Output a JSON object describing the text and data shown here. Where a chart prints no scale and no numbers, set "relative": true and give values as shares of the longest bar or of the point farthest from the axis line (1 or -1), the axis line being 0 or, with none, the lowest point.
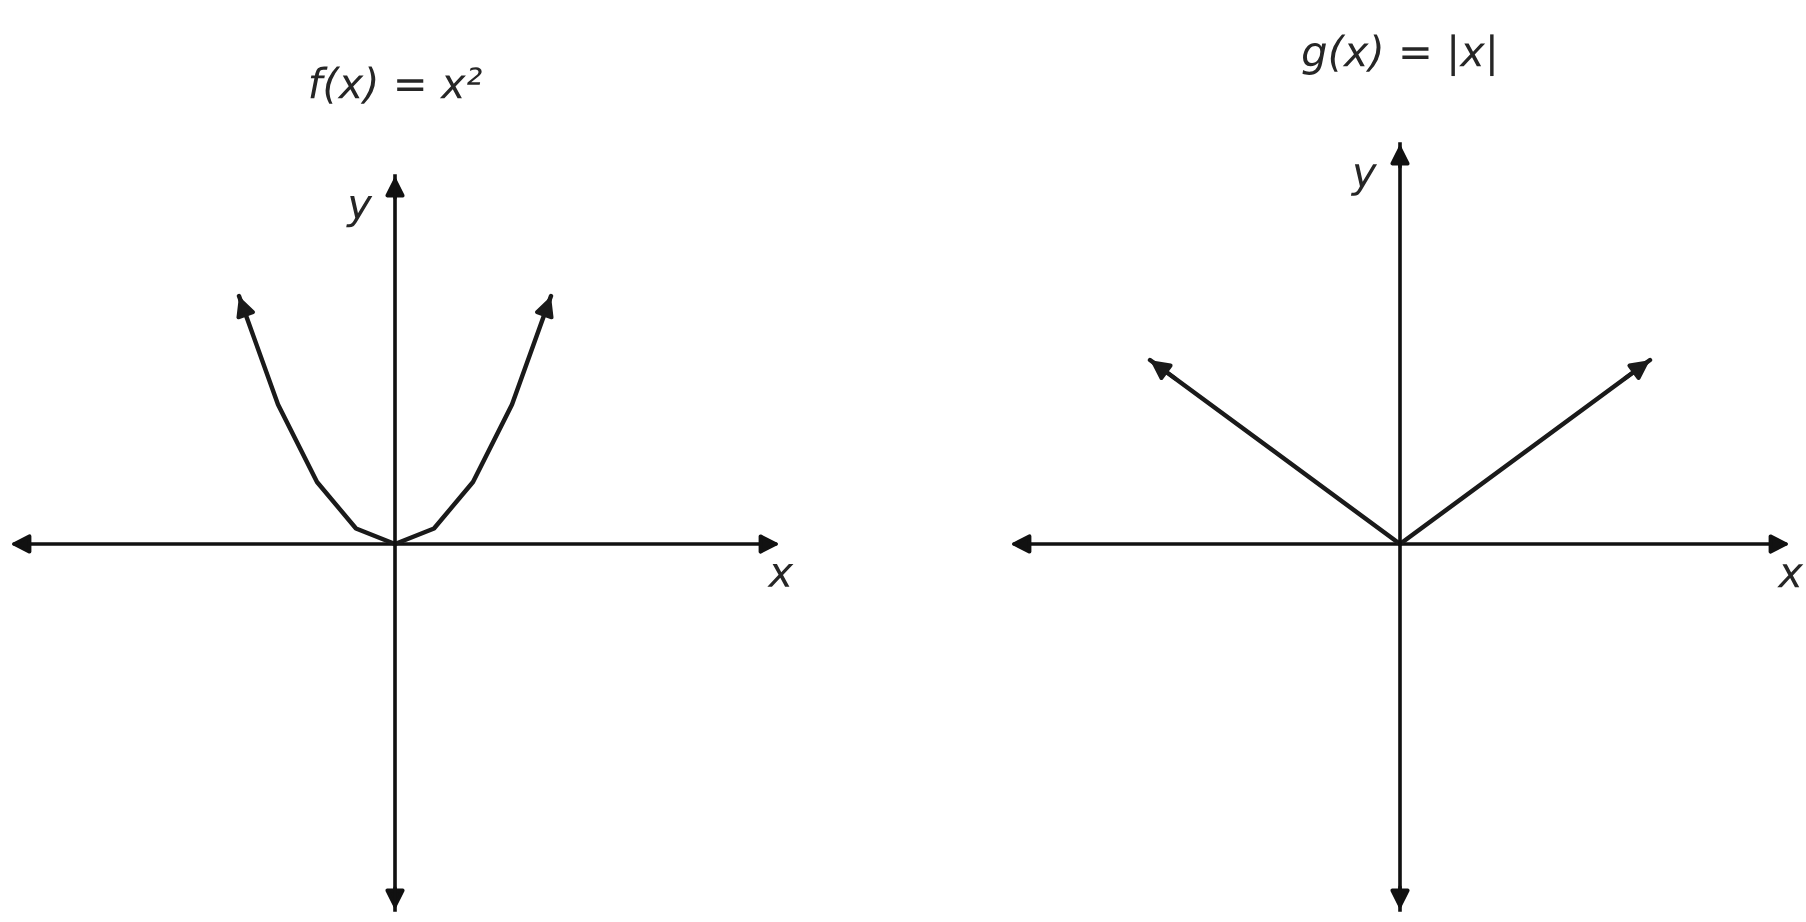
{
  "chart_data": [
    {
      "type": "line",
      "title": "f(x) = x²",
      "xlabel": "x",
      "ylabel": "y",
      "relative": true,
      "color": "#1a1a1a",
      "categories": [
        null,
        null,
        null,
        null,
        null,
        null,
        null,
        null,
        null
      ],
      "values": [
        1,
        0.5625,
        0.25,
        0.0625,
        0,
        0.0625,
        0.25,
        0.5625,
        1
      ]
    },
    {
      "type": "line",
      "title": "g(x) = |x|",
      "xlabel": "x",
      "ylabel": "y",
      "relative": true,
      "color": "#1a1a1a",
      "categories": [
        null,
        null,
        null
      ],
      "values": [
        1,
        0,
        1
      ]
    }
  ]
}
